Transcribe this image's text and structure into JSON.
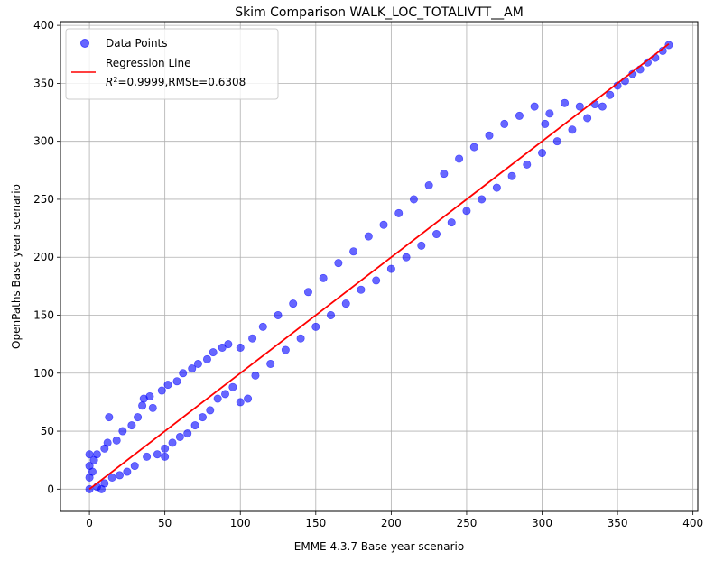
{
  "chart_data": {
    "type": "scatter",
    "title": "Skim Comparison WALK_LOC_TOTALIVTT__AM",
    "xlabel": "EMME 4.3.7 Base year scenario",
    "ylabel": "OpenPaths Base year scenario",
    "xlim": [
      -19.2,
      403.2
    ],
    "ylim": [
      -19.2,
      403.2
    ],
    "xticks": [
      0,
      50,
      100,
      150,
      200,
      250,
      300,
      350,
      400
    ],
    "yticks": [
      0,
      50,
      100,
      150,
      200,
      250,
      300,
      350,
      400
    ],
    "grid": true,
    "legend_position": "top-left",
    "series": [
      {
        "name": "Data Points",
        "kind": "scatter",
        "color": "#0000ff",
        "alpha": 0.6,
        "points": [
          [
            0,
            0
          ],
          [
            0,
            10
          ],
          [
            0,
            20
          ],
          [
            0,
            30
          ],
          [
            2,
            15
          ],
          [
            3,
            25
          ],
          [
            5,
            2
          ],
          [
            5,
            30
          ],
          [
            8,
            0
          ],
          [
            10,
            5
          ],
          [
            10,
            35
          ],
          [
            12,
            40
          ],
          [
            13,
            62
          ],
          [
            15,
            10
          ],
          [
            18,
            42
          ],
          [
            20,
            12
          ],
          [
            22,
            50
          ],
          [
            25,
            15
          ],
          [
            28,
            55
          ],
          [
            30,
            20
          ],
          [
            32,
            62
          ],
          [
            35,
            72
          ],
          [
            36,
            78
          ],
          [
            38,
            28
          ],
          [
            40,
            80
          ],
          [
            42,
            70
          ],
          [
            45,
            30
          ],
          [
            48,
            85
          ],
          [
            50,
            35
          ],
          [
            50,
            28
          ],
          [
            52,
            90
          ],
          [
            55,
            40
          ],
          [
            58,
            93
          ],
          [
            60,
            45
          ],
          [
            62,
            100
          ],
          [
            65,
            48
          ],
          [
            68,
            104
          ],
          [
            70,
            55
          ],
          [
            72,
            108
          ],
          [
            75,
            62
          ],
          [
            78,
            112
          ],
          [
            80,
            68
          ],
          [
            82,
            118
          ],
          [
            85,
            78
          ],
          [
            88,
            122
          ],
          [
            90,
            82
          ],
          [
            92,
            125
          ],
          [
            95,
            88
          ],
          [
            100,
            75
          ],
          [
            100,
            122
          ],
          [
            105,
            78
          ],
          [
            108,
            130
          ],
          [
            110,
            98
          ],
          [
            115,
            140
          ],
          [
            120,
            108
          ],
          [
            125,
            150
          ],
          [
            130,
            120
          ],
          [
            135,
            160
          ],
          [
            140,
            130
          ],
          [
            145,
            170
          ],
          [
            150,
            140
          ],
          [
            155,
            182
          ],
          [
            160,
            150
          ],
          [
            165,
            195
          ],
          [
            170,
            160
          ],
          [
            175,
            205
          ],
          [
            180,
            172
          ],
          [
            185,
            218
          ],
          [
            190,
            180
          ],
          [
            195,
            228
          ],
          [
            200,
            190
          ],
          [
            205,
            238
          ],
          [
            210,
            200
          ],
          [
            215,
            250
          ],
          [
            220,
            210
          ],
          [
            225,
            262
          ],
          [
            230,
            220
          ],
          [
            235,
            272
          ],
          [
            240,
            230
          ],
          [
            245,
            285
          ],
          [
            250,
            240
          ],
          [
            255,
            295
          ],
          [
            260,
            250
          ],
          [
            265,
            305
          ],
          [
            270,
            260
          ],
          [
            275,
            315
          ],
          [
            280,
            270
          ],
          [
            285,
            322
          ],
          [
            290,
            280
          ],
          [
            295,
            330
          ],
          [
            300,
            290
          ],
          [
            302,
            315
          ],
          [
            305,
            324
          ],
          [
            310,
            300
          ],
          [
            315,
            333
          ],
          [
            320,
            310
          ],
          [
            325,
            330
          ],
          [
            330,
            320
          ],
          [
            335,
            332
          ],
          [
            340,
            330
          ],
          [
            345,
            340
          ],
          [
            350,
            348
          ],
          [
            355,
            352
          ],
          [
            360,
            358
          ],
          [
            365,
            362
          ],
          [
            370,
            368
          ],
          [
            375,
            372
          ],
          [
            380,
            378
          ],
          [
            384,
            383
          ]
        ]
      },
      {
        "name": "Regression Line",
        "kind": "line",
        "color": "#ff0000",
        "x": [
          0,
          384
        ],
        "y": [
          0,
          384
        ]
      }
    ],
    "legend": {
      "scatter_label": "Data Points",
      "line_label_1": "Regression Line",
      "line_label_2": "=0.9999,RMSE=0.6308",
      "r2_base": "R",
      "r2_sup": "2"
    }
  }
}
